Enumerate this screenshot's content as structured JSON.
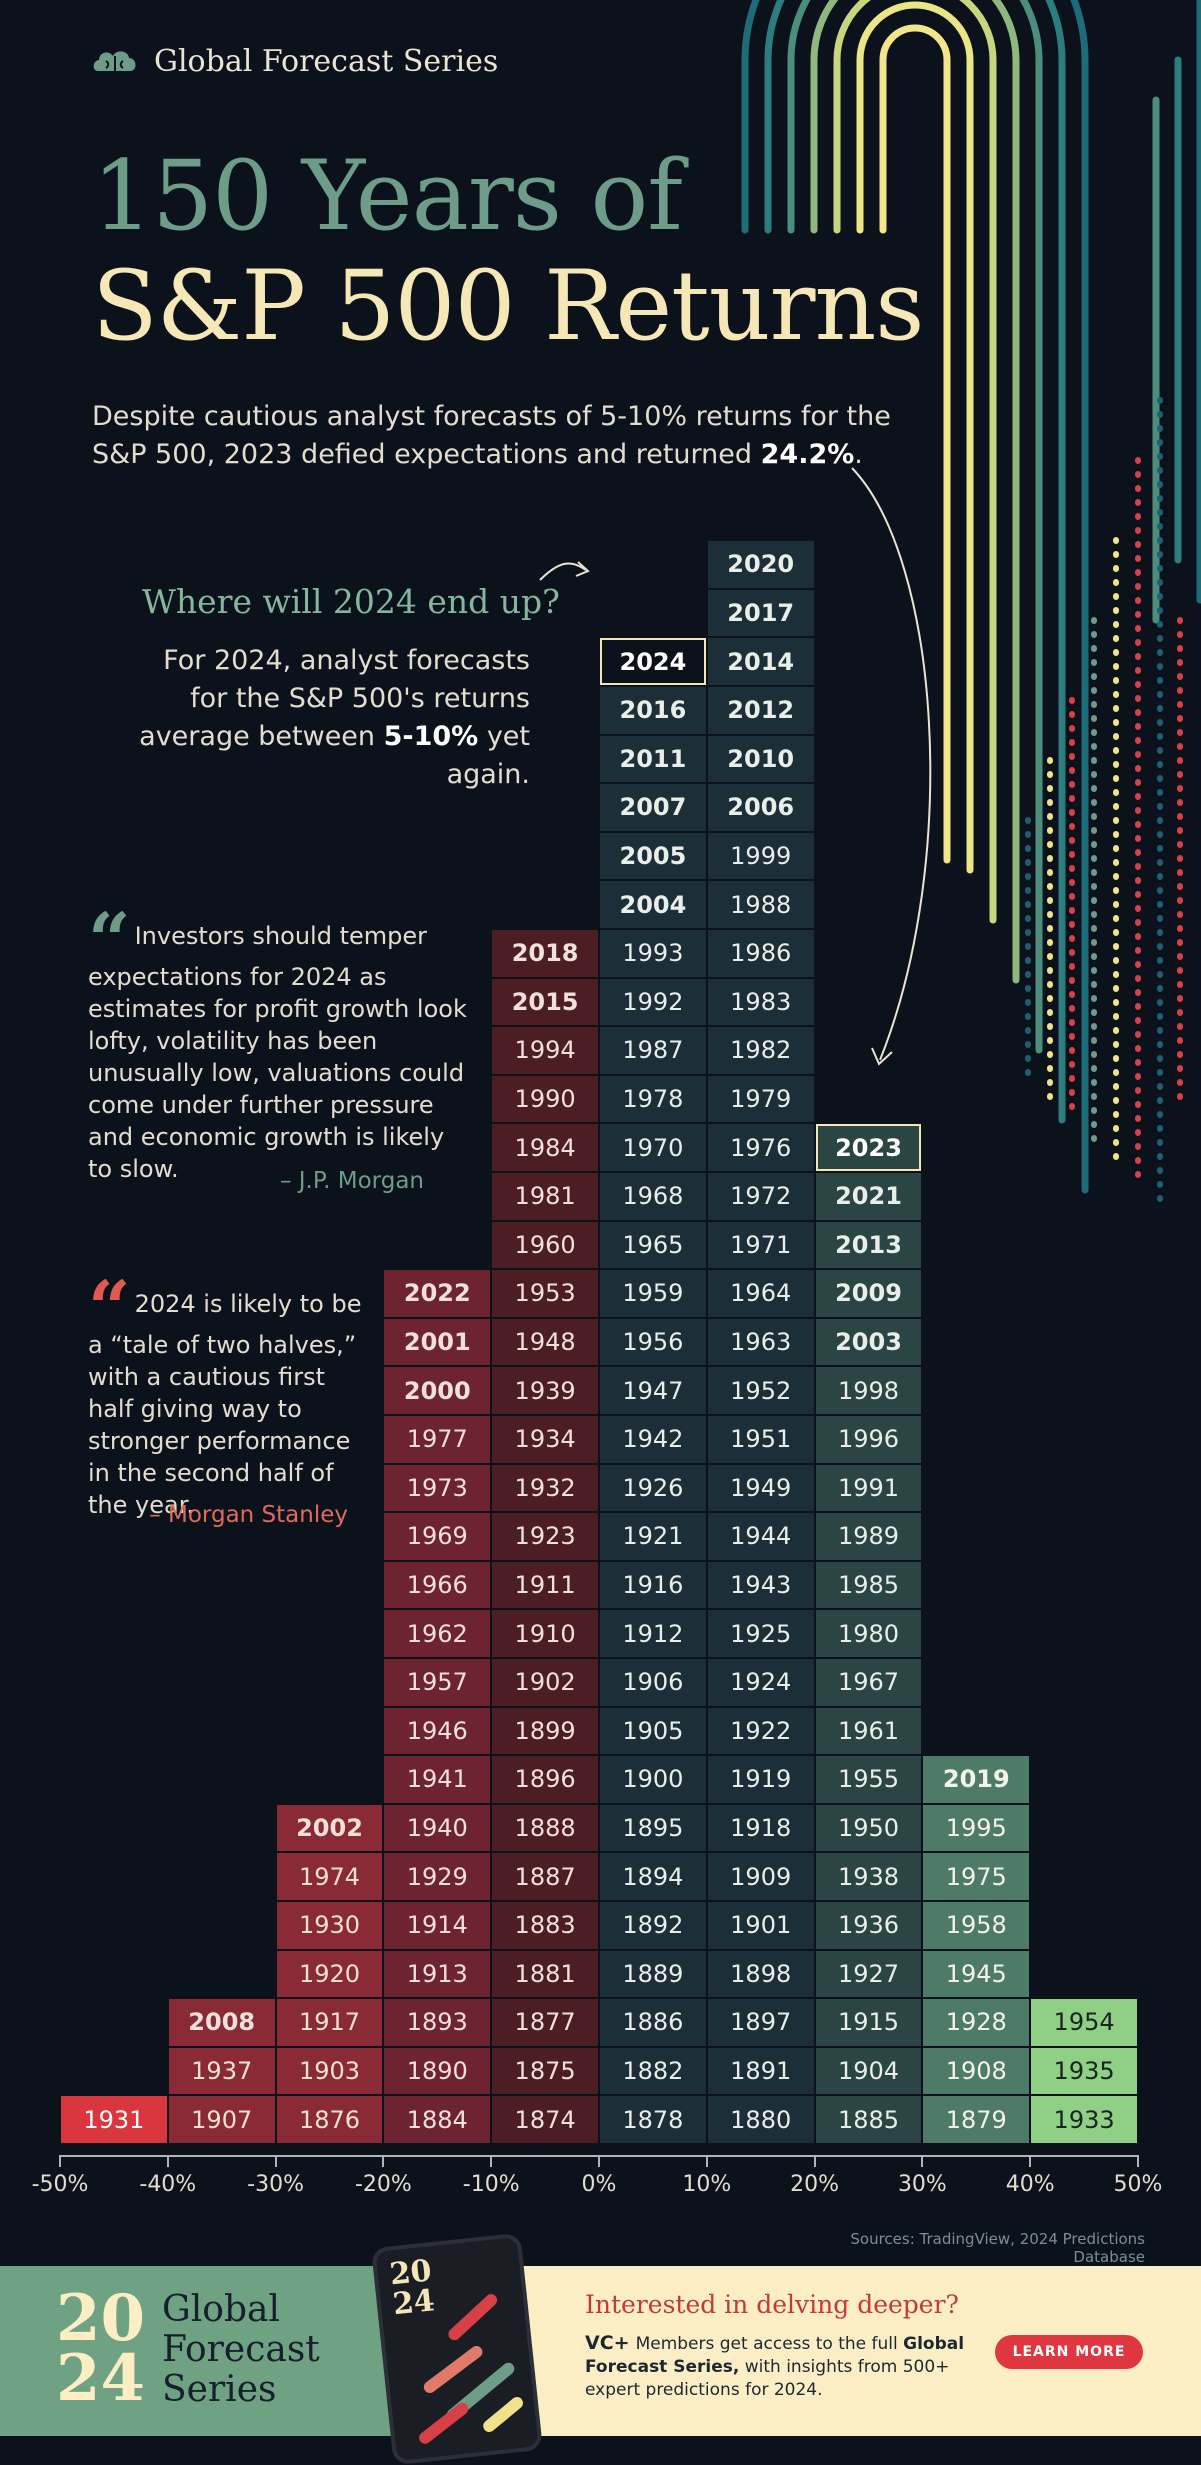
{
  "brand": {
    "name": "Global Forecast Series",
    "icon": "brain-cloud-icon"
  },
  "title": {
    "line1": "150 Years of",
    "line2": "S&P 500 Returns"
  },
  "intro": {
    "text": "Despite cautious analyst forecasts of 5-10% returns for the S&P 500, 2023 defied expectations and returned ",
    "highlight": "24.2%",
    "end": "."
  },
  "question": {
    "title": "Where will 2024 end up?",
    "body": "For 2024, analyst forecasts for the S&P 500's returns average between ",
    "highlight": "5-10%",
    "end": " yet again."
  },
  "quotes": [
    {
      "text": "Investors should temper expectations for 2024 as estimates for profit growth look lofty, volatility has been unusually low, valuations could come under further pressure and economic growth is likely to slow.",
      "attribution": "– J.P. Morgan"
    },
    {
      "text": "2024 is likely to be a “tale of two halves,” with a cautious first half giving way to stronger performance in the second half of the year.",
      "attribution": "– Morgan Stanley"
    }
  ],
  "colors": {
    "neg_dark": "#4d1d25",
    "neg_mid": "#6e2430",
    "neg_light": "#8a2a36",
    "neg_strong": "#d9363e",
    "pos_dark": "#1c2e38",
    "pos_mid": "#2a4543",
    "pos_light": "#4d7b68",
    "pos_strong": "#8fcf86",
    "highlight_border": "#f3e6b7",
    "accent_red": "#e05a4f",
    "accent_green": "#6d9c88"
  },
  "chart_data": {
    "type": "histogram",
    "title": "150 Years of S&P 500 Returns",
    "x_axis_ticks": [
      "-50%",
      "-40%",
      "-30%",
      "-20%",
      "-10%",
      "0%",
      "10%",
      "20%",
      "30%",
      "40%",
      "50%"
    ],
    "bin_width_percent": 10,
    "highlighted_years": [
      "2023",
      "2024"
    ],
    "bins": [
      {
        "range": [
          -50,
          -40
        ],
        "years": [
          "1931"
        ],
        "bold": []
      },
      {
        "range": [
          -40,
          -30
        ],
        "years": [
          "1907",
          "1937",
          "2008"
        ],
        "bold": [
          "2008"
        ]
      },
      {
        "range": [
          -30,
          -20
        ],
        "years": [
          "1876",
          "1903",
          "1917",
          "1920",
          "1930",
          "1974",
          "2002"
        ],
        "bold": [
          "2002"
        ]
      },
      {
        "range": [
          -20,
          -10
        ],
        "years": [
          "1884",
          "1890",
          "1893",
          "1913",
          "1914",
          "1929",
          "1940",
          "1941",
          "1946",
          "1957",
          "1962",
          "1966",
          "1969",
          "1973",
          "1977",
          "2000",
          "2001",
          "2022"
        ],
        "bold": [
          "2000",
          "2001",
          "2022"
        ]
      },
      {
        "range": [
          -10,
          0
        ],
        "years": [
          "1874",
          "1875",
          "1877",
          "1881",
          "1883",
          "1887",
          "1888",
          "1896",
          "1899",
          "1902",
          "1910",
          "1911",
          "1923",
          "1932",
          "1934",
          "1939",
          "1948",
          "1953",
          "1960",
          "1981",
          "1984",
          "1990",
          "1994",
          "2015",
          "2018"
        ],
        "bold": [
          "2015",
          "2018"
        ]
      },
      {
        "range": [
          0,
          10
        ],
        "years": [
          "1878",
          "1882",
          "1886",
          "1889",
          "1892",
          "1894",
          "1895",
          "1900",
          "1905",
          "1906",
          "1912",
          "1916",
          "1921",
          "1926",
          "1942",
          "1947",
          "1956",
          "1959",
          "1965",
          "1968",
          "1970",
          "1978",
          "1987",
          "1992",
          "1993",
          "2004",
          "2005",
          "2007",
          "2011",
          "2016",
          "2024"
        ],
        "bold": [
          "2004",
          "2005",
          "2007",
          "2011",
          "2016",
          "2024"
        ]
      },
      {
        "range": [
          10,
          20
        ],
        "years": [
          "1880",
          "1891",
          "1897",
          "1898",
          "1901",
          "1909",
          "1918",
          "1919",
          "1922",
          "1924",
          "1925",
          "1943",
          "1944",
          "1949",
          "1951",
          "1952",
          "1963",
          "1964",
          "1971",
          "1972",
          "1976",
          "1979",
          "1982",
          "1983",
          "1986",
          "1988",
          "1999",
          "2006",
          "2010",
          "2012",
          "2014",
          "2017",
          "2020"
        ],
        "bold": [
          "2006",
          "2010",
          "2012",
          "2014",
          "2017",
          "2020"
        ]
      },
      {
        "range": [
          20,
          30
        ],
        "years": [
          "1885",
          "1904",
          "1915",
          "1927",
          "1936",
          "1938",
          "1950",
          "1955",
          "1961",
          "1967",
          "1980",
          "1985",
          "1989",
          "1991",
          "1996",
          "1998",
          "2003",
          "2009",
          "2013",
          "2021",
          "2023"
        ],
        "bold": [
          "2003",
          "2009",
          "2013",
          "2021",
          "2023"
        ]
      },
      {
        "range": [
          30,
          40
        ],
        "years": [
          "1879",
          "1908",
          "1928",
          "1945",
          "1958",
          "1975",
          "1995",
          "2019"
        ],
        "bold": [
          "2019"
        ]
      },
      {
        "range": [
          40,
          50
        ],
        "years": [
          "1933",
          "1935",
          "1954"
        ],
        "bold": []
      }
    ],
    "sources": "Sources: TradingView, 2024 Predictions Database"
  },
  "footer": {
    "year_top": "20",
    "year_bottom": "24",
    "brand": "Global Forecast Series",
    "cta_title": "Interested in delving deeper?",
    "vc_logo": "VC+",
    "cta_text_1": "Members get access to the full ",
    "cta_text_bold": "Global Forecast Series,",
    "cta_text_2": " with insights from 500+ expert predictions for 2024.",
    "button": "LEARN MORE",
    "phone_cover": "2024"
  }
}
